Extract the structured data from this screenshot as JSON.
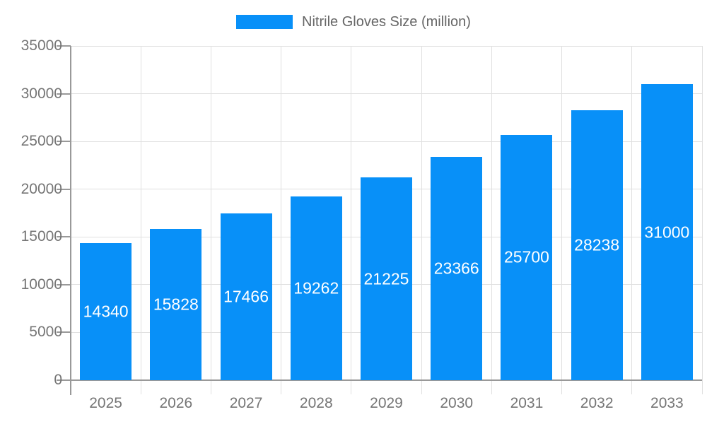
{
  "chart_data": {
    "type": "bar",
    "title": "Nitrile Gloves Size (million)",
    "legend": {
      "position": "top",
      "label": "Nitrile Gloves Size (million)"
    },
    "categories": [
      "2025",
      "2026",
      "2027",
      "2028",
      "2029",
      "2030",
      "2031",
      "2032",
      "2033"
    ],
    "series": [
      {
        "name": "Nitrile Gloves Size (million)",
        "values": [
          14340,
          15828,
          17466,
          19262,
          21225,
          23366,
          25700,
          28238,
          31000
        ]
      }
    ],
    "value_labels_shown": true,
    "xlabel": "",
    "ylabel": "",
    "ylim": [
      0,
      35000
    ],
    "ytick_step": 5000,
    "grid": true,
    "colors": {
      "bar": "#0890f8",
      "grid": "#e0e0e0",
      "axis": "#999999",
      "tick_text": "#757575",
      "legend_text": "#666666",
      "value_text": "#ffffff",
      "background": "#ffffff"
    }
  }
}
